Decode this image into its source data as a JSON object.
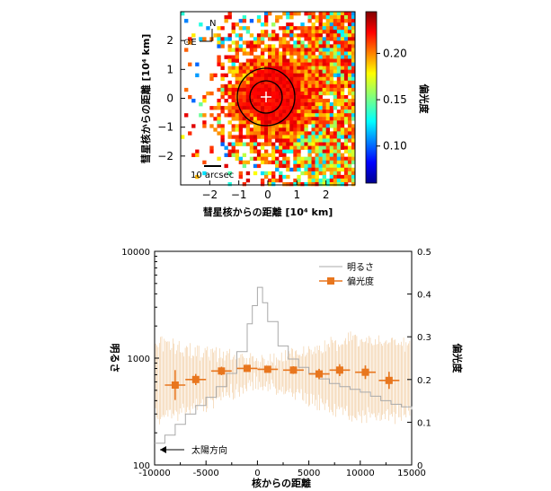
{
  "chart_data": [
    {
      "type": "heatmap",
      "title": "",
      "xlabel": "彗星核からの距離 [10⁴ km]",
      "ylabel": "彗星核からの距離 [10⁴ km]",
      "xlim": [
        -3,
        3
      ],
      "ylim": [
        -3,
        3
      ],
      "xticks": [
        "−2",
        "−1",
        "0",
        "1",
        "2"
      ],
      "yticks": [
        "2",
        "1",
        "0",
        "−1",
        "−2"
      ],
      "colorbar": {
        "label": "偏光度",
        "min": 0.06,
        "max": 0.245,
        "ticks": [
          "0.20",
          "0.15",
          "0.10"
        ]
      },
      "annotations": {
        "north": "N",
        "east": "⊙E",
        "scale_bar": "10 arcsec",
        "nucleus_marker": "+"
      }
    },
    {
      "type": "line",
      "xlabel": "核からの距離",
      "ylabel_left": "明るさ",
      "ylabel_right": "偏光度",
      "xlim": [
        -10000,
        15000
      ],
      "ylim_left": [
        100,
        10000
      ],
      "ylim_right": [
        0,
        0.5
      ],
      "xticks": [
        "-10000",
        "-5000",
        "0",
        "5000",
        "10000",
        "15000"
      ],
      "yticks_left": [
        "10000",
        "1000",
        "100"
      ],
      "yticks_right": [
        "0.5",
        "0.4",
        "0.3",
        "0.2",
        "0.1",
        "0"
      ],
      "annotation": "太陽方向",
      "series": [
        {
          "name": "明るさ",
          "color": "#a9a9a9",
          "axis": "left",
          "x": [
            -10000,
            -9000,
            -8000,
            -7000,
            -6000,
            -5000,
            -4000,
            -3000,
            -2000,
            -1000,
            -500,
            0,
            500,
            1000,
            2000,
            3000,
            4000,
            5000,
            6000,
            7000,
            8000,
            9000,
            10000,
            11000,
            12000,
            13000,
            14000,
            15000
          ],
          "y": [
            160,
            190,
            240,
            300,
            360,
            430,
            540,
            720,
            1150,
            2100,
            3100,
            4600,
            3300,
            2200,
            1300,
            980,
            820,
            720,
            640,
            580,
            540,
            510,
            480,
            440,
            400,
            370,
            350,
            330
          ]
        },
        {
          "name": "偏光度",
          "color": "#e8761e",
          "axis": "right",
          "x": [
            -8000,
            -6000,
            -3500,
            -1000,
            1000,
            3500,
            6000,
            8000,
            10500,
            12800
          ],
          "y": [
            0.187,
            0.2,
            0.22,
            0.226,
            0.224,
            0.222,
            0.213,
            0.222,
            0.217,
            0.198
          ],
          "xerr": [
            1000,
            1000,
            1000,
            1000,
            1000,
            1000,
            1000,
            1000,
            1000,
            1000
          ],
          "yerr": [
            0.035,
            0.013,
            0.01,
            0.007,
            0.006,
            0.009,
            0.012,
            0.014,
            0.016,
            0.02
          ]
        }
      ]
    }
  ]
}
